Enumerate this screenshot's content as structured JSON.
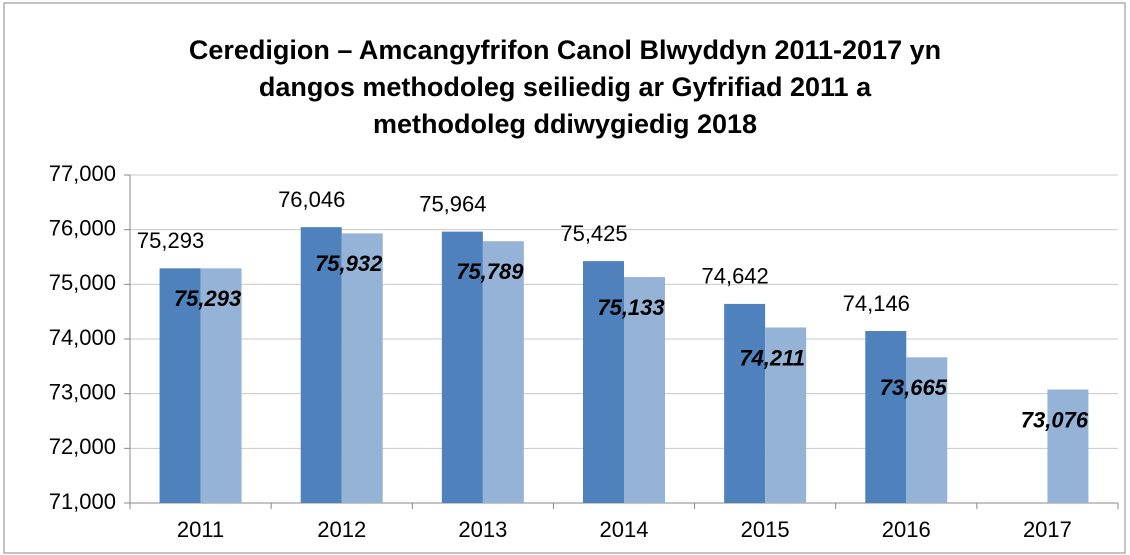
{
  "chart_data": {
    "type": "bar",
    "title": [
      "Ceredigion – Amcangyfrifon Canol Blwyddyn 2011-2017 yn",
      "dangos methodoleg seiliedig ar Gyfrifiad 2011 a",
      "methodoleg ddiwygiedig 2018"
    ],
    "categories": [
      "2011",
      "2012",
      "2013",
      "2014",
      "2015",
      "2016",
      "2017"
    ],
    "series": [
      {
        "color": "#4f81bd",
        "values": [
          75293,
          76046,
          75964,
          75425,
          74642,
          74146,
          null
        ],
        "value_labels": [
          "75,293",
          "76,046",
          "75,964",
          "75,425",
          "74,642",
          "74,146",
          null
        ]
      },
      {
        "color": "#95b3d7",
        "values": [
          75293,
          75932,
          75789,
          75133,
          74211,
          73665,
          73076
        ],
        "value_labels": [
          "75,293",
          "75,932",
          "75,789",
          "75,133",
          "74,211",
          "73,665",
          "73,076"
        ]
      }
    ],
    "ylim": [
      71000,
      77000
    ],
    "yticks": [
      {
        "value": 71000,
        "label": "71,000"
      },
      {
        "value": 72000,
        "label": "72,000"
      },
      {
        "value": 73000,
        "label": "73,000"
      },
      {
        "value": 74000,
        "label": "74,000"
      },
      {
        "value": 75000,
        "label": "75,000"
      },
      {
        "value": 76000,
        "label": "76,000"
      },
      {
        "value": 77000,
        "label": "77,000"
      }
    ],
    "grid": true
  }
}
